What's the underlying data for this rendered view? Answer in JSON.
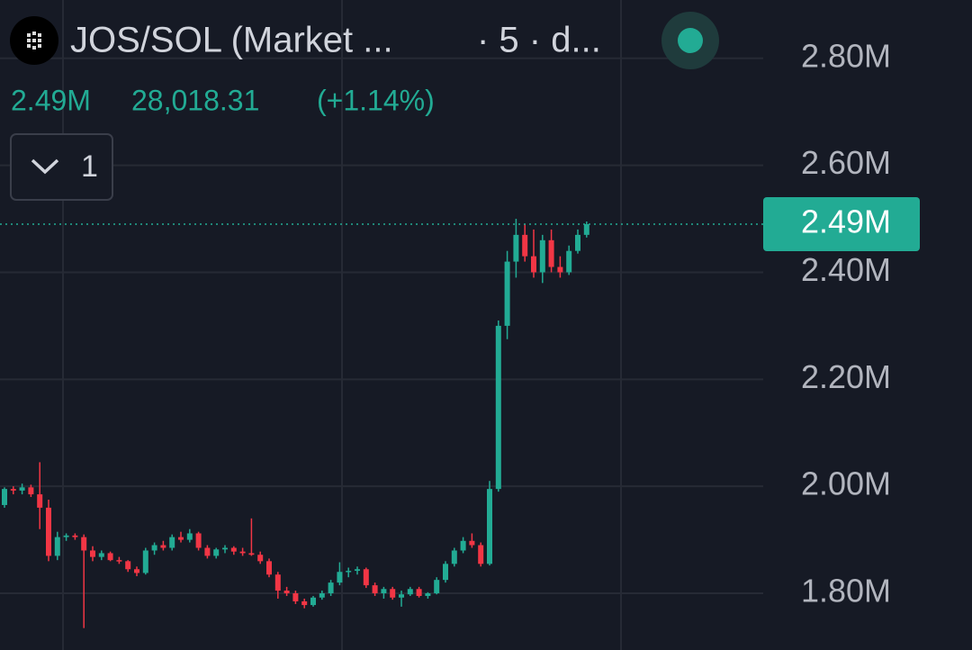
{
  "chart_data": {
    "type": "candlestick",
    "title": "JOS/SOL (Market ...",
    "interval": "· 5 · d...",
    "change": {
      "value": 28018.31,
      "label": "28,018.31"
    },
    "change_percent": {
      "value": 1.14,
      "label": "(+1.14%)"
    },
    "indicator_count": 1,
    "last": {
      "value": 2490000,
      "label": "2.49M"
    },
    "up_color": "#22ab94",
    "down_color": "#f23645",
    "grid": true,
    "ylim": [
      1694000,
      2909000
    ],
    "yticks": [
      {
        "value": 1800000,
        "label": "1.80M"
      },
      {
        "value": 2000000,
        "label": "2.00M"
      },
      {
        "value": 2200000,
        "label": "2.20M"
      },
      {
        "value": 2400000,
        "label": "2.40M"
      },
      {
        "value": 2600000,
        "label": "2.60M"
      },
      {
        "value": 2800000,
        "label": "2.80M"
      }
    ],
    "open": [
      1965000,
      1995000,
      1992000,
      1998000,
      1985000,
      1960000,
      1870000,
      1905000,
      1908000,
      1905000,
      1880000,
      1868000,
      1875000,
      1862000,
      1860000,
      1845000,
      1838000,
      1880000,
      1890000,
      1885000,
      1905000,
      1900000,
      1912000,
      1885000,
      1870000,
      1882000,
      1885000,
      1878000,
      1875000,
      1872000,
      1860000,
      1835000,
      1805000,
      1800000,
      1785000,
      1778000,
      1792000,
      1800000,
      1820000,
      1840000,
      1842000,
      1845000,
      1815000,
      1800000,
      1808000,
      1792000,
      1798000,
      1808000,
      1795000,
      1800000,
      1825000,
      1855000,
      1880000,
      1898000,
      1890000,
      1855000,
      1995000,
      2300000,
      2420000,
      2470000,
      2430000,
      2400000,
      2460000,
      2410000,
      2400000,
      2440000,
      2470000
    ],
    "high": [
      1998000,
      2000000,
      2005000,
      2003000,
      2045000,
      1975000,
      1915000,
      1912000,
      1912000,
      1910000,
      1888000,
      1880000,
      1878000,
      1868000,
      1862000,
      1850000,
      1885000,
      1895000,
      1898000,
      1910000,
      1915000,
      1920000,
      1915000,
      1890000,
      1885000,
      1890000,
      1888000,
      1885000,
      1940000,
      1878000,
      1865000,
      1840000,
      1812000,
      1805000,
      1790000,
      1795000,
      1805000,
      1825000,
      1858000,
      1848000,
      1850000,
      1848000,
      1820000,
      1812000,
      1812000,
      1805000,
      1812000,
      1812000,
      1802000,
      1830000,
      1860000,
      1885000,
      1905000,
      1912000,
      1895000,
      2010000,
      2310000,
      2440000,
      2500000,
      2490000,
      2480000,
      2470000,
      2480000,
      2430000,
      2450000,
      2480000,
      2495000
    ],
    "low": [
      1960000,
      1985000,
      1985000,
      1980000,
      1920000,
      1860000,
      1862000,
      1898000,
      1900000,
      1735000,
      1860000,
      1862000,
      1860000,
      1855000,
      1840000,
      1832000,
      1835000,
      1872000,
      1880000,
      1880000,
      1895000,
      1895000,
      1880000,
      1865000,
      1865000,
      1875000,
      1872000,
      1870000,
      1870000,
      1855000,
      1830000,
      1790000,
      1795000,
      1780000,
      1772000,
      1775000,
      1788000,
      1795000,
      1815000,
      1830000,
      1835000,
      1810000,
      1795000,
      1790000,
      1788000,
      1775000,
      1795000,
      1792000,
      1790000,
      1798000,
      1820000,
      1850000,
      1875000,
      1885000,
      1850000,
      1852000,
      1990000,
      2275000,
      2390000,
      2420000,
      2390000,
      2380000,
      2400000,
      2390000,
      2395000,
      2435000,
      2465000
    ],
    "close": [
      1995000,
      1992000,
      1998000,
      1985000,
      1960000,
      1870000,
      1905000,
      1908000,
      1905000,
      1880000,
      1868000,
      1875000,
      1862000,
      1860000,
      1845000,
      1838000,
      1880000,
      1890000,
      1885000,
      1905000,
      1900000,
      1912000,
      1885000,
      1870000,
      1882000,
      1885000,
      1878000,
      1875000,
      1872000,
      1860000,
      1835000,
      1805000,
      1800000,
      1785000,
      1778000,
      1792000,
      1800000,
      1820000,
      1840000,
      1842000,
      1845000,
      1815000,
      1800000,
      1808000,
      1792000,
      1798000,
      1808000,
      1795000,
      1800000,
      1825000,
      1855000,
      1880000,
      1898000,
      1890000,
      1855000,
      1995000,
      2300000,
      2420000,
      2470000,
      2430000,
      2400000,
      2460000,
      2410000,
      2400000,
      2440000,
      2470000,
      2490000
    ]
  }
}
